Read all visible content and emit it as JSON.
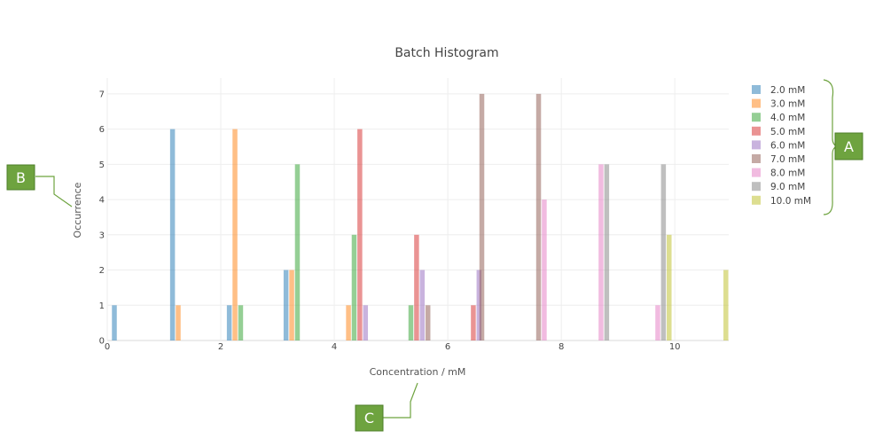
{
  "chart_data": {
    "type": "bar",
    "title": "Batch Histogram",
    "xlabel": "Concentration / mM",
    "ylabel": "Occurrence",
    "xlim": [
      0,
      10.95
    ],
    "ylim": [
      0,
      7.45
    ],
    "x_ticks": [
      "0",
      "2",
      "4",
      "6",
      "8",
      "10"
    ],
    "y_ticks": [
      "0",
      "1",
      "2",
      "3",
      "4",
      "5",
      "6",
      "7"
    ],
    "grid": true,
    "legend_position": "right",
    "series": [
      {
        "name": "2.0 mM",
        "color": "#1f77b4",
        "points": [
          {
            "x": 0.125,
            "y": 1
          },
          {
            "x": 1.15,
            "y": 6
          },
          {
            "x": 2.15,
            "y": 1
          },
          {
            "x": 3.15,
            "y": 2
          }
        ]
      },
      {
        "name": "3.0 mM",
        "color": "#ff7f0e",
        "points": [
          {
            "x": 1.25,
            "y": 1
          },
          {
            "x": 2.25,
            "y": 6
          },
          {
            "x": 3.25,
            "y": 2
          },
          {
            "x": 4.25,
            "y": 1
          }
        ]
      },
      {
        "name": "4.0 mM",
        "color": "#2ca02c",
        "points": [
          {
            "x": 2.35,
            "y": 1
          },
          {
            "x": 3.35,
            "y": 5
          },
          {
            "x": 4.35,
            "y": 3
          },
          {
            "x": 5.35,
            "y": 1
          }
        ]
      },
      {
        "name": "5.0 mM",
        "color": "#d62728",
        "points": [
          {
            "x": 4.45,
            "y": 6
          },
          {
            "x": 5.45,
            "y": 3
          },
          {
            "x": 6.45,
            "y": 1
          }
        ]
      },
      {
        "name": "6.0 mM",
        "color": "#9467bd",
        "points": [
          {
            "x": 4.55,
            "y": 1
          },
          {
            "x": 5.55,
            "y": 2
          },
          {
            "x": 6.55,
            "y": 2
          }
        ]
      },
      {
        "name": "7.0 mM",
        "color": "#8c564b",
        "points": [
          {
            "x": 5.65,
            "y": 1
          },
          {
            "x": 6.6,
            "y": 7
          },
          {
            "x": 7.6,
            "y": 7
          }
        ]
      },
      {
        "name": "8.0 mM",
        "color": "#e377c2",
        "points": [
          {
            "x": 7.7,
            "y": 4
          },
          {
            "x": 8.7,
            "y": 5
          },
          {
            "x": 9.7,
            "y": 1
          }
        ]
      },
      {
        "name": "9.0 mM",
        "color": "#7f7f7f",
        "points": [
          {
            "x": 8.8,
            "y": 5
          },
          {
            "x": 9.8,
            "y": 5
          }
        ]
      },
      {
        "name": "10.0 mM",
        "color": "#bcbd22",
        "points": [
          {
            "x": 9.9,
            "y": 3
          },
          {
            "x": 10.9,
            "y": 2
          }
        ]
      }
    ]
  },
  "callouts": {
    "a": "A",
    "b": "B",
    "c": "C",
    "color": "#6ea33f"
  }
}
